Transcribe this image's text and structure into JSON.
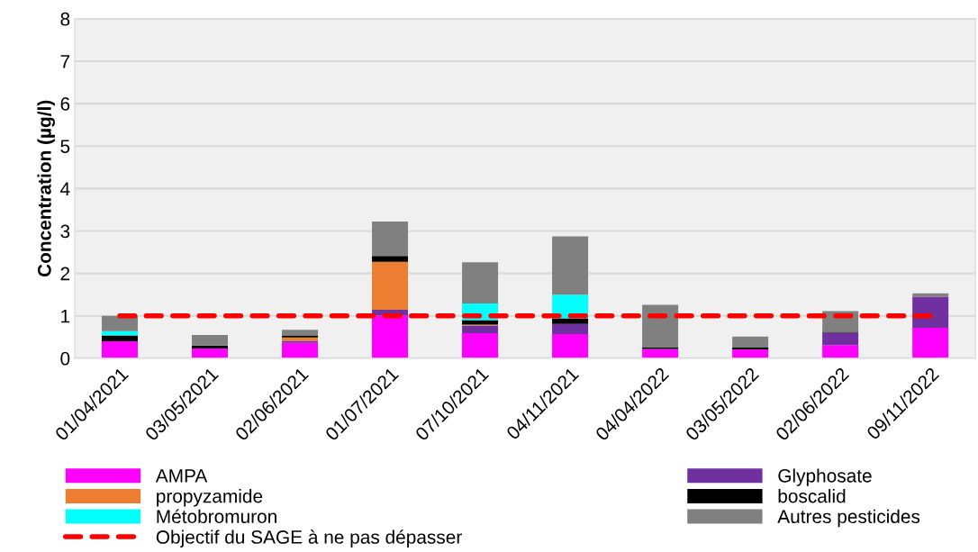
{
  "chart_data": {
    "type": "bar",
    "stacked": true,
    "ylabel": "Concentration (µg/l)",
    "categories": [
      "01/04/2021",
      "03/05/2021",
      "02/06/2021",
      "01/07/2021",
      "07/10/2021",
      "04/11/2021",
      "04/04/2022",
      "03/05/2022",
      "02/06/2022",
      "09/11/2022"
    ],
    "series": [
      {
        "name": "AMPA",
        "color": "#ff00ff",
        "values": [
          0.4,
          0.23,
          0.36,
          1.01,
          0.59,
          0.57,
          0.22,
          0.21,
          0.31,
          0.72
        ]
      },
      {
        "name": "Glyphosate",
        "color": "#7030a0",
        "values": [
          0,
          0,
          0.05,
          0.13,
          0.18,
          0.24,
          0,
          0,
          0.29,
          0.73
        ]
      },
      {
        "name": "propyzamide",
        "color": "#ed7d31",
        "values": [
          0,
          0,
          0.08,
          1.13,
          0.02,
          0,
          0,
          0,
          0,
          0
        ]
      },
      {
        "name": "boscalid",
        "color": "#000000",
        "values": [
          0.14,
          0.07,
          0.05,
          0.14,
          0.11,
          0.13,
          0.04,
          0.05,
          0.02,
          0
        ]
      },
      {
        "name": "Métobromuron",
        "color": "#00ffff",
        "values": [
          0.1,
          0,
          0,
          0,
          0.39,
          0.56,
          0,
          0,
          0,
          0
        ]
      },
      {
        "name": "Autres pesticides",
        "color": "#808080",
        "values": [
          0.36,
          0.25,
          0.13,
          0.81,
          0.97,
          1.37,
          1.0,
          0.25,
          0.49,
          0.08
        ]
      },
      {
        "name": "Objectif du SAGE à ne pas dépasser",
        "type": "line",
        "line_style": "dashed",
        "color": "#ff0000",
        "values": [
          1,
          1,
          1,
          1,
          1,
          1,
          1,
          1,
          1,
          1
        ]
      }
    ],
    "ylim": [
      0,
      8
    ],
    "yticks": [
      0,
      1,
      2,
      3,
      4,
      5,
      6,
      7,
      8
    ],
    "grid": "y",
    "legend": "bottom"
  }
}
